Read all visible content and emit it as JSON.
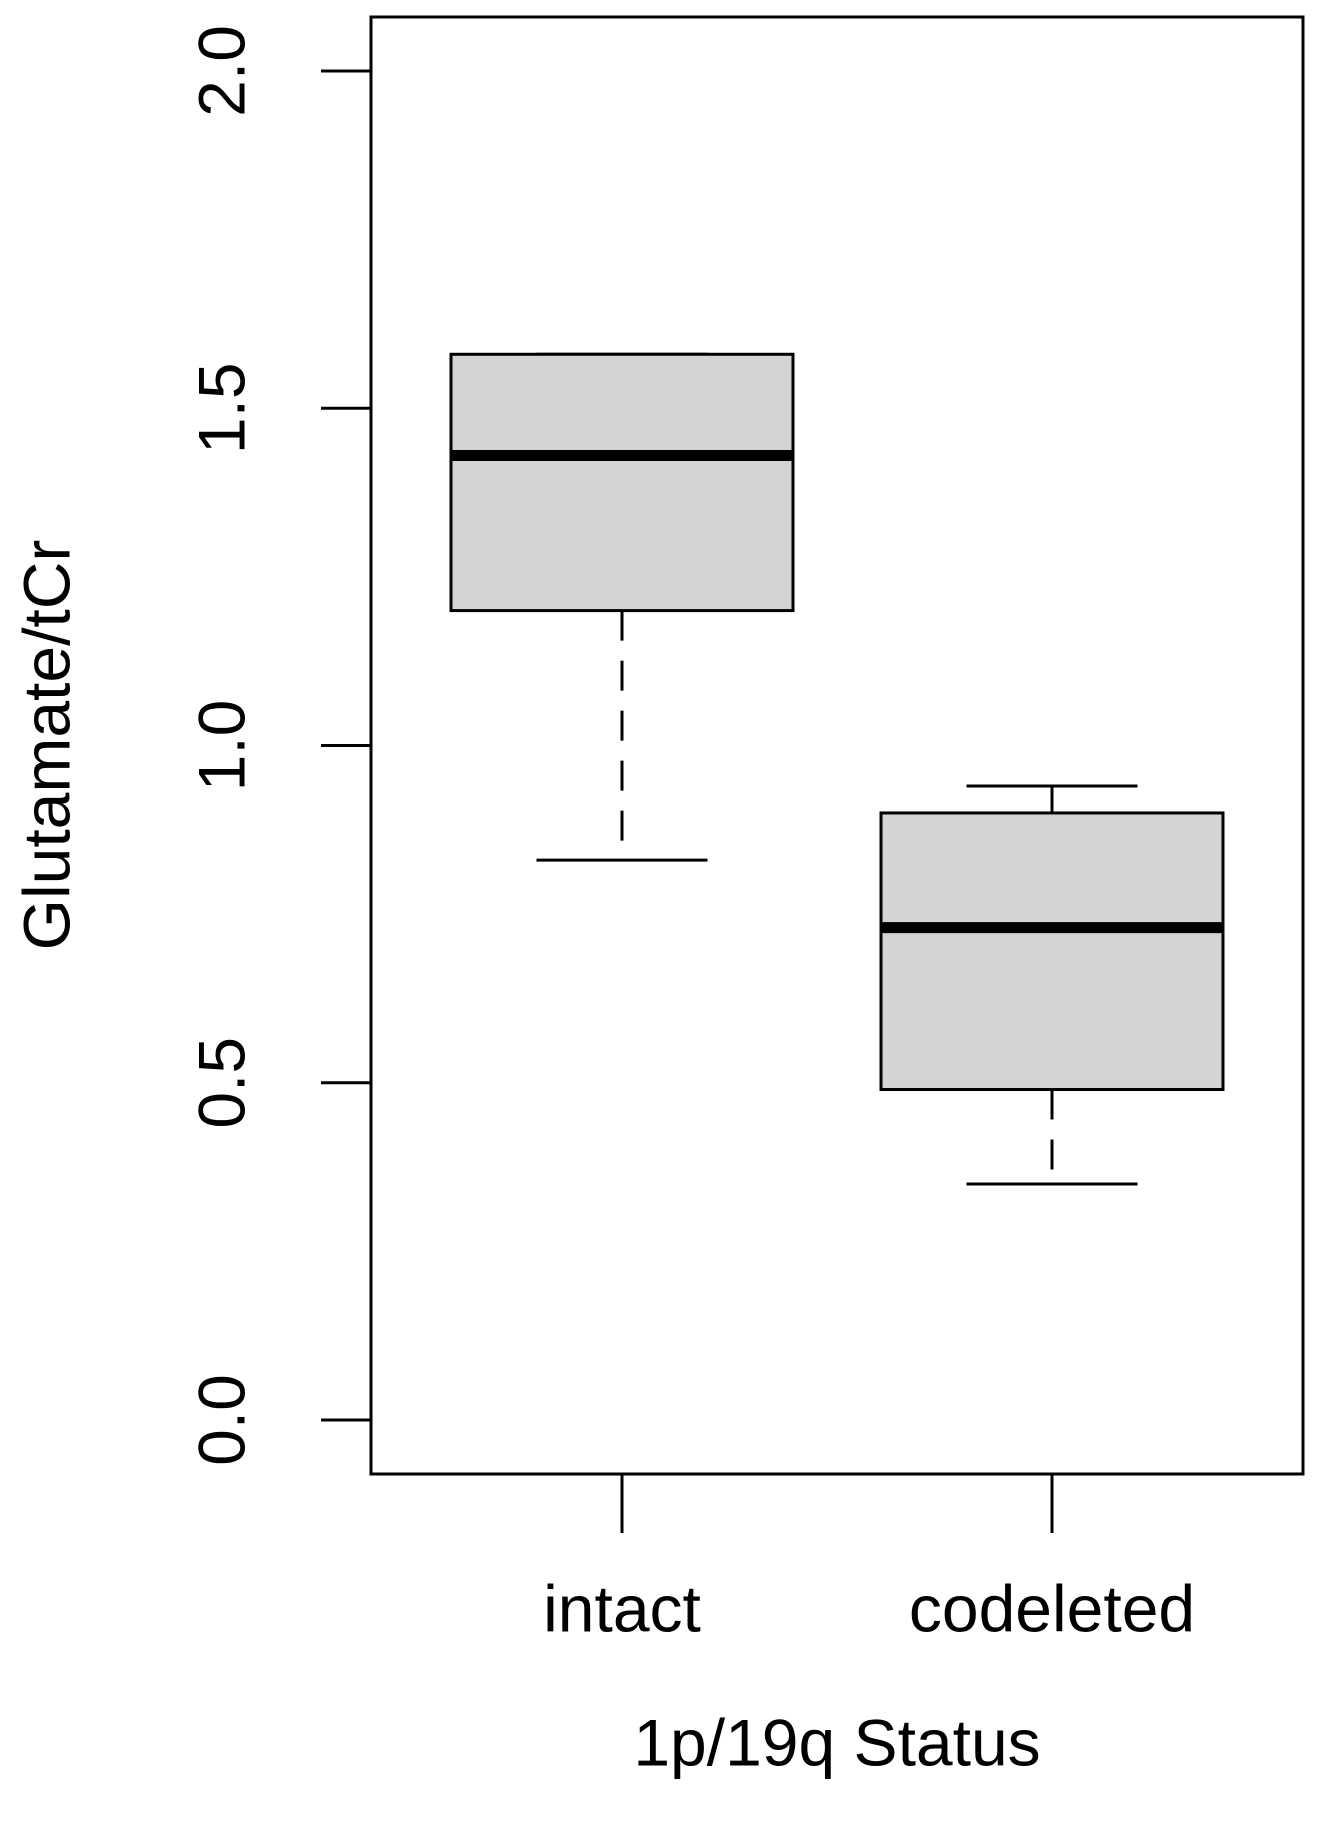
{
  "chart_data": {
    "type": "box",
    "x_label": "1p/19q Status",
    "y_label": "Glutamate/tCr",
    "categories": [
      "intact",
      "codeleted"
    ],
    "boxes": [
      {
        "min": 0.83,
        "q1": 1.2,
        "median": 1.43,
        "q3": 1.58,
        "max": 1.58
      },
      {
        "min": 0.35,
        "q1": 0.49,
        "median": 0.73,
        "q3": 0.9,
        "max": 0.94
      }
    ],
    "color": "#d3d3d3",
    "ylim": [
      -0.08,
      2.08
    ],
    "yticks": [
      {
        "value": 0,
        "label": "0.0"
      },
      {
        "value": 0.5,
        "label": "0.5"
      },
      {
        "value": 1,
        "label": "1.0"
      },
      {
        "value": 1.5,
        "label": "1.5"
      },
      {
        "value": 2,
        "label": "2.0"
      }
    ]
  }
}
